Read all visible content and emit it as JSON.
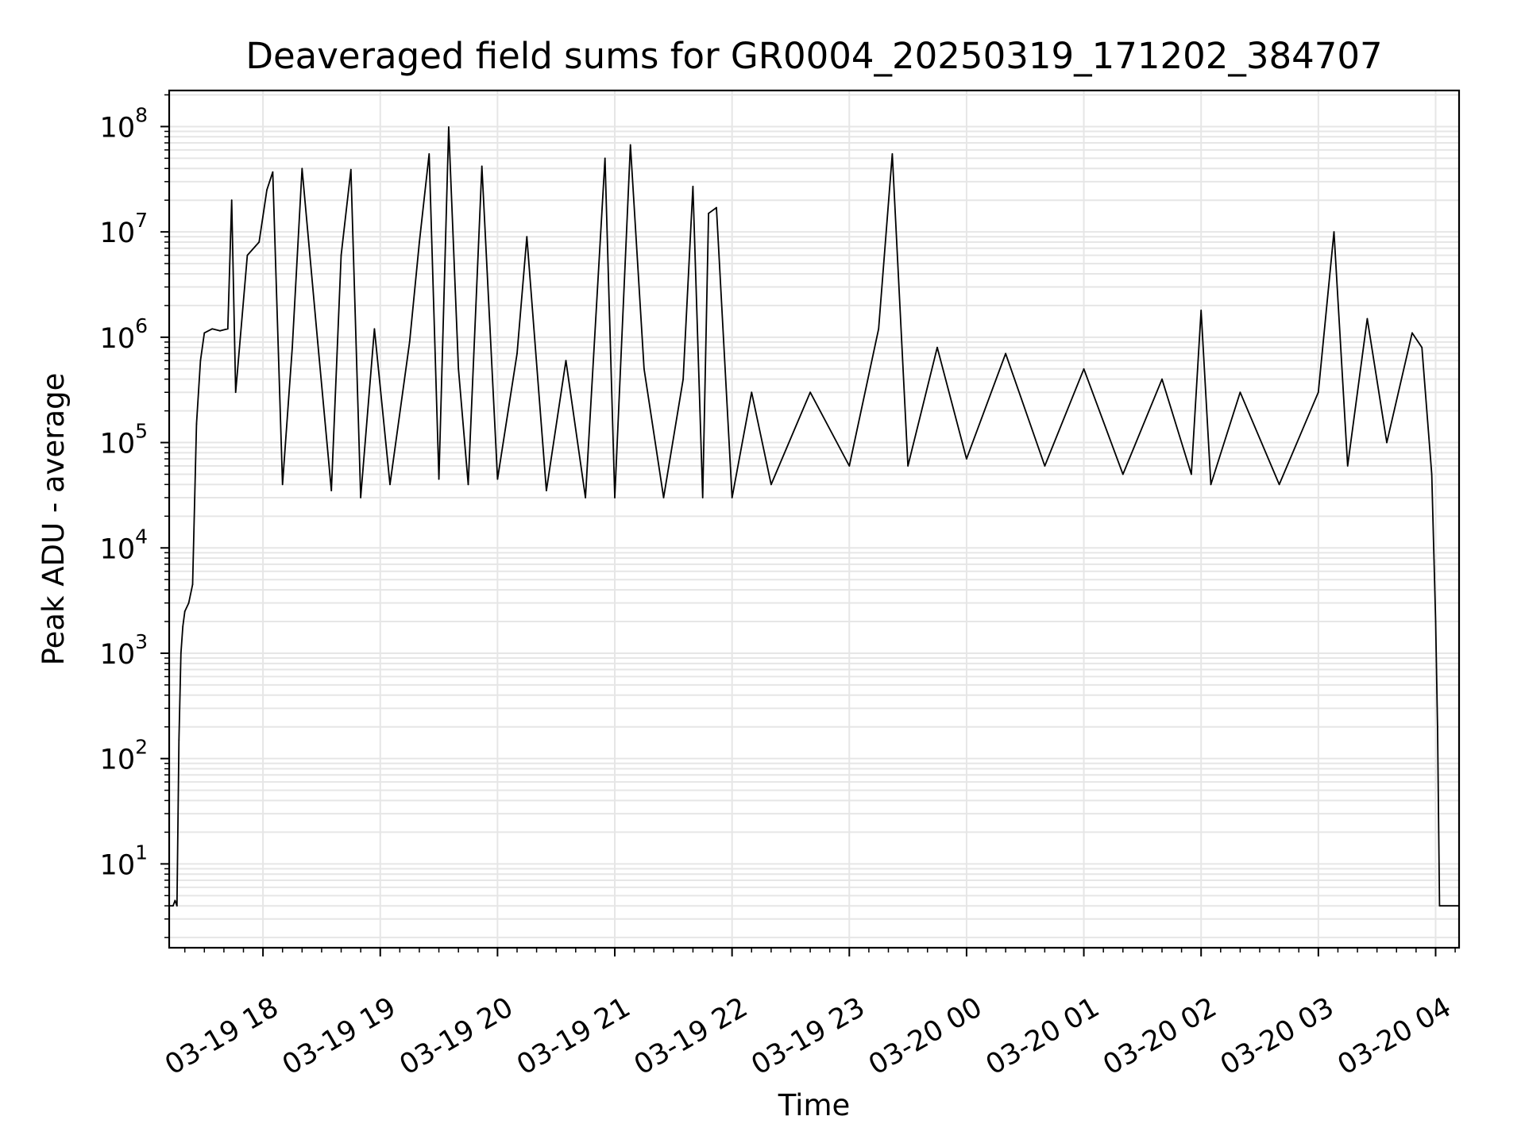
{
  "chart_data": {
    "type": "line",
    "title": "Deaveraged field sums for GR0004_20250319_171202_384707",
    "xlabel": "Time",
    "ylabel": "Peak ADU - average",
    "yscale": "log",
    "grid": true,
    "grid_minor": true,
    "line_color": "#000000",
    "grid_color": "#e6e6e6",
    "xlim": [
      "2025-03-19 17:12",
      "2025-03-20 04:12"
    ],
    "ylim": [
      1.6,
      220000000
    ],
    "x_ticks": [
      "03-19 18",
      "03-19 19",
      "03-19 20",
      "03-19 21",
      "03-19 22",
      "03-19 23",
      "03-20 00",
      "03-20 01",
      "03-20 02",
      "03-20 03",
      "03-20 04"
    ],
    "y_ticks": [
      {
        "value": 10,
        "base": "10",
        "exp": "1"
      },
      {
        "value": 100,
        "base": "10",
        "exp": "2"
      },
      {
        "value": 1000,
        "base": "10",
        "exp": "3"
      },
      {
        "value": 10000,
        "base": "10",
        "exp": "4"
      },
      {
        "value": 100000,
        "base": "10",
        "exp": "5"
      },
      {
        "value": 1000000,
        "base": "10",
        "exp": "6"
      },
      {
        "value": 10000000,
        "base": "10",
        "exp": "7"
      },
      {
        "value": 100000000,
        "base": "10",
        "exp": "8"
      }
    ],
    "series": [
      {
        "points": [
          [
            "2025-03-19 17:12",
            4
          ],
          [
            "2025-03-19 17:14",
            4
          ],
          [
            "2025-03-19 17:15",
            4.5
          ],
          [
            "2025-03-19 17:16",
            4
          ],
          [
            "2025-03-19 17:17",
            150
          ],
          [
            "2025-03-19 17:18",
            1000
          ],
          [
            "2025-03-19 17:19",
            1800
          ],
          [
            "2025-03-19 17:20",
            2500
          ],
          [
            "2025-03-19 17:22",
            3000
          ],
          [
            "2025-03-19 17:24",
            4500
          ],
          [
            "2025-03-19 17:26",
            150000
          ],
          [
            "2025-03-19 17:28",
            600000
          ],
          [
            "2025-03-19 17:30",
            1100000
          ],
          [
            "2025-03-19 17:34",
            1200000
          ],
          [
            "2025-03-19 17:38",
            1150000
          ],
          [
            "2025-03-19 17:42",
            1200000
          ],
          [
            "2025-03-19 17:44",
            20000000
          ],
          [
            "2025-03-19 17:46",
            300000
          ],
          [
            "2025-03-19 17:52",
            6000000
          ],
          [
            "2025-03-19 17:58",
            8000000
          ],
          [
            "2025-03-19 18:02",
            25000000
          ],
          [
            "2025-03-19 18:05",
            37000000
          ],
          [
            "2025-03-19 18:10",
            40000
          ],
          [
            "2025-03-19 18:15",
            800000
          ],
          [
            "2025-03-19 18:20",
            40000000
          ],
          [
            "2025-03-19 18:28",
            900000
          ],
          [
            "2025-03-19 18:35",
            35000
          ],
          [
            "2025-03-19 18:40",
            6000000
          ],
          [
            "2025-03-19 18:45",
            39000000
          ],
          [
            "2025-03-19 18:50",
            30000
          ],
          [
            "2025-03-19 18:57",
            1200000
          ],
          [
            "2025-03-19 19:05",
            40000
          ],
          [
            "2025-03-19 19:15",
            900000
          ],
          [
            "2025-03-19 19:20",
            8000000
          ],
          [
            "2025-03-19 19:25",
            55000000
          ],
          [
            "2025-03-19 19:30",
            45000
          ],
          [
            "2025-03-19 19:35",
            99000000
          ],
          [
            "2025-03-19 19:40",
            500000
          ],
          [
            "2025-03-19 19:45",
            40000
          ],
          [
            "2025-03-19 19:52",
            42000000
          ],
          [
            "2025-03-19 20:00",
            45000
          ],
          [
            "2025-03-19 20:10",
            700000
          ],
          [
            "2025-03-19 20:15",
            9000000
          ],
          [
            "2025-03-19 20:25",
            35000
          ],
          [
            "2025-03-19 20:35",
            600000
          ],
          [
            "2025-03-19 20:45",
            30000
          ],
          [
            "2025-03-19 20:55",
            50000000
          ],
          [
            "2025-03-19 21:00",
            30000
          ],
          [
            "2025-03-19 21:08",
            67000000
          ],
          [
            "2025-03-19 21:15",
            500000
          ],
          [
            "2025-03-19 21:25",
            30000
          ],
          [
            "2025-03-19 21:35",
            400000
          ],
          [
            "2025-03-19 21:40",
            27000000
          ],
          [
            "2025-03-19 21:45",
            30000
          ],
          [
            "2025-03-19 21:48",
            15000000
          ],
          [
            "2025-03-19 21:52",
            17000000
          ],
          [
            "2025-03-19 22:00",
            30000
          ],
          [
            "2025-03-19 22:10",
            300000
          ],
          [
            "2025-03-19 22:20",
            40000
          ],
          [
            "2025-03-19 22:40",
            300000
          ],
          [
            "2025-03-19 23:00",
            60000
          ],
          [
            "2025-03-19 23:15",
            1200000
          ],
          [
            "2025-03-19 23:22",
            55000000
          ],
          [
            "2025-03-19 23:30",
            60000
          ],
          [
            "2025-03-19 23:45",
            800000
          ],
          [
            "2025-03-20 00:00",
            70000
          ],
          [
            "2025-03-20 00:20",
            700000
          ],
          [
            "2025-03-20 00:40",
            60000
          ],
          [
            "2025-03-20 01:00",
            500000
          ],
          [
            "2025-03-20 01:20",
            50000
          ],
          [
            "2025-03-20 01:40",
            400000
          ],
          [
            "2025-03-20 01:55",
            50000
          ],
          [
            "2025-03-20 02:00",
            1800000
          ],
          [
            "2025-03-20 02:05",
            40000
          ],
          [
            "2025-03-20 02:20",
            300000
          ],
          [
            "2025-03-20 02:40",
            40000
          ],
          [
            "2025-03-20 03:00",
            300000
          ],
          [
            "2025-03-20 03:08",
            10000000
          ],
          [
            "2025-03-20 03:15",
            60000
          ],
          [
            "2025-03-20 03:25",
            1500000
          ],
          [
            "2025-03-20 03:35",
            100000
          ],
          [
            "2025-03-20 03:48",
            1100000
          ],
          [
            "2025-03-20 03:53",
            800000
          ],
          [
            "2025-03-20 03:58",
            50000
          ],
          [
            "2025-03-20 04:00",
            2000
          ],
          [
            "2025-03-20 04:01",
            200
          ],
          [
            "2025-03-20 04:02",
            4
          ],
          [
            "2025-03-20 04:12",
            4
          ]
        ]
      }
    ]
  }
}
